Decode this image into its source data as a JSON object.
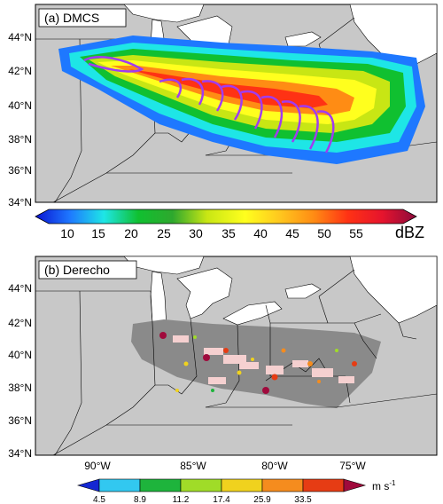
{
  "panel_a": {
    "title": "(a) DMCS",
    "lat_labels": [
      "44°N",
      "42°N",
      "40°N",
      "38°N",
      "36°N",
      "34°N"
    ],
    "colorbar": {
      "ticks": [
        "10",
        "15",
        "20",
        "25",
        "30",
        "35",
        "40",
        "45",
        "50",
        "55"
      ],
      "unit": "dBZ",
      "colors": [
        "#0a14d2",
        "#1e78ff",
        "#1ee6e6",
        "#10c030",
        "#2ea82e",
        "#c8e614",
        "#ffff1e",
        "#ffc81e",
        "#ff8c14",
        "#ff3214",
        "#e6142d",
        "#8c0a3c"
      ]
    }
  },
  "panel_b": {
    "title": "(b) Derecho",
    "lat_labels": [
      "44°N",
      "42°N",
      "40°N",
      "38°N",
      "36°N",
      "34°N"
    ],
    "lon_labels": [
      "90°W",
      "85°W",
      "80°W",
      "75°W"
    ],
    "colorbar": {
      "ticks": [
        "4.5",
        "8.9",
        "11.2",
        "17.4",
        "25.9",
        "33.5"
      ],
      "unit": "m s",
      "unit_sup": "-1",
      "colors": [
        "#1428d2",
        "#32c8f0",
        "#1eb43c",
        "#a0dc28",
        "#f0d21e",
        "#f58c1e",
        "#e63c14",
        "#a00a3c"
      ]
    }
  },
  "colors": {
    "land": "#c8c8c8",
    "water": "#ffffff",
    "boundary": "#000000",
    "swath": "#8a8a8a",
    "contour": "#a03cf0",
    "hail_patch": "#f5d0d0"
  }
}
